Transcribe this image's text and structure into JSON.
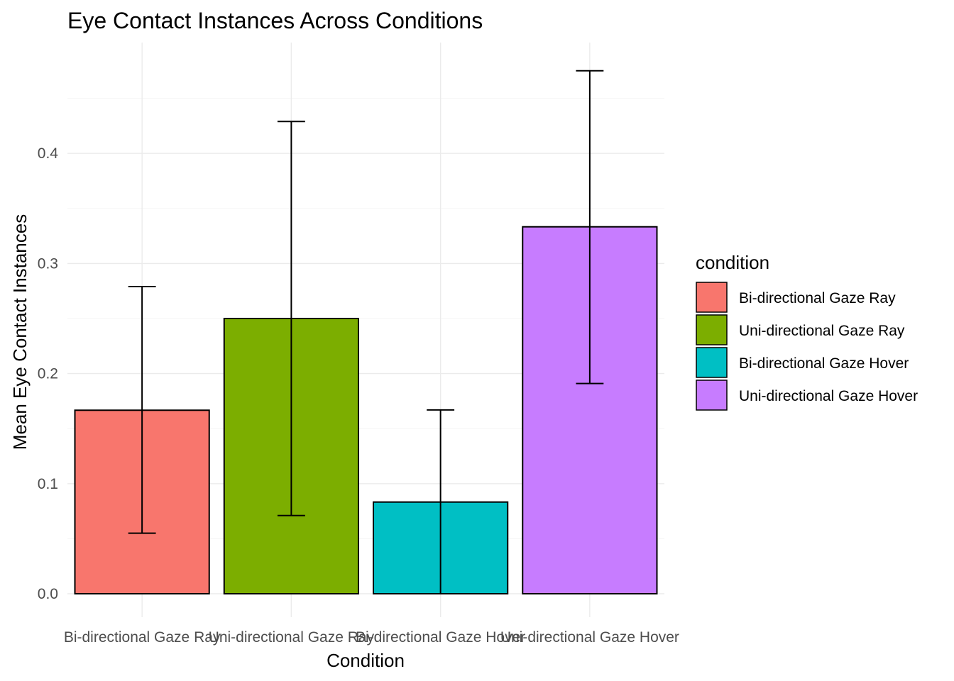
{
  "chart_data": {
    "type": "bar",
    "title": "Eye Contact Instances Across Conditions",
    "xlabel": "Condition",
    "ylabel": "Mean Eye Contact Instances",
    "categories": [
      "Bi-directional Gaze Ray",
      "Uni-directional Gaze Ray",
      "Bi-directional Gaze Hover",
      "Uni-directional Gaze Hover"
    ],
    "values": [
      0.1667,
      0.25,
      0.0833,
      0.3333
    ],
    "error_low": [
      0.055,
      0.071,
      0.0,
      0.191
    ],
    "error_high": [
      0.279,
      0.429,
      0.167,
      0.475
    ],
    "colors": [
      "#F8766D",
      "#7CAE00",
      "#00BFC4",
      "#C77CFF"
    ],
    "ylim": [
      0,
      0.5
    ],
    "yticks": [
      0.0,
      0.1,
      0.2,
      0.3,
      0.4
    ],
    "ytick_labels": [
      "0.0",
      "0.1",
      "0.2",
      "0.3",
      "0.4"
    ],
    "grid": true,
    "legend": {
      "title": "condition",
      "position": "right",
      "entries": [
        "Bi-directional Gaze Ray",
        "Uni-directional Gaze Ray",
        "Bi-directional Gaze Hover",
        "Uni-directional Gaze Hover"
      ]
    }
  }
}
